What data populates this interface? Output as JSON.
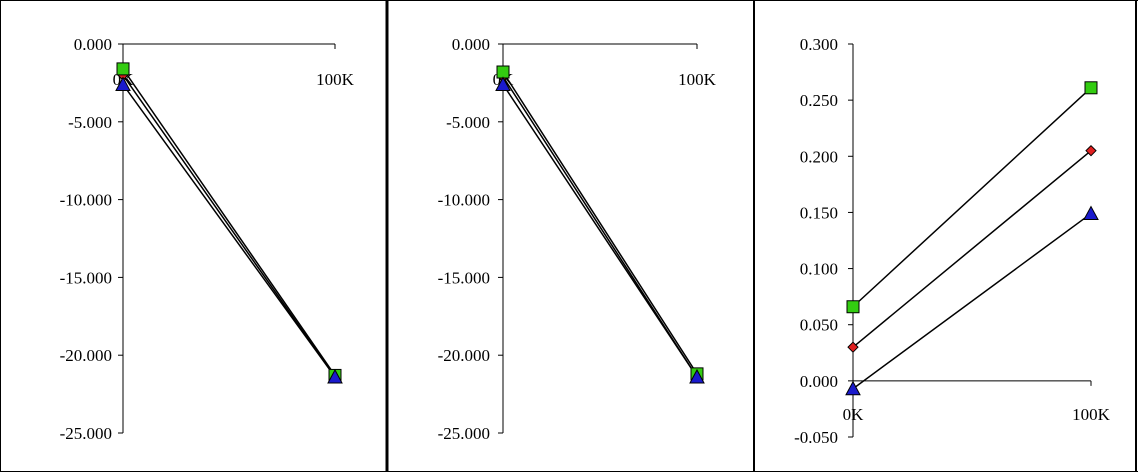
{
  "chart_data": [
    {
      "type": "line",
      "categories": [
        "0K",
        "100K"
      ],
      "ylim": [
        -25,
        0
      ],
      "yticks": [
        "0.000",
        "-5.000",
        "-10.000",
        "-15.000",
        "-20.000",
        "-25.000"
      ],
      "grid": false,
      "series": [
        {
          "marker": "diamond",
          "color": "#e02020",
          "values": [
            -2.0,
            -21.4
          ]
        },
        {
          "marker": "square",
          "color": "#33cc11",
          "values": [
            -1.6,
            -21.3
          ]
        },
        {
          "marker": "triangle",
          "color": "#1a1acc",
          "values": [
            -2.6,
            -21.4
          ]
        }
      ]
    },
    {
      "type": "line",
      "categories": [
        "0K",
        "100K"
      ],
      "ylim": [
        -25,
        0
      ],
      "yticks": [
        "0.000",
        "-5.000",
        "-10.000",
        "-15.000",
        "-20.000",
        "-25.000"
      ],
      "grid": false,
      "series": [
        {
          "marker": "diamond",
          "color": "#e02020",
          "values": [
            -2.1,
            -21.4
          ]
        },
        {
          "marker": "square",
          "color": "#33cc11",
          "values": [
            -1.8,
            -21.2
          ]
        },
        {
          "marker": "triangle",
          "color": "#1a1acc",
          "values": [
            -2.6,
            -21.4
          ]
        }
      ]
    },
    {
      "type": "line",
      "categories": [
        "0K",
        "100K"
      ],
      "ylim": [
        -0.05,
        0.3
      ],
      "yticks": [
        "0.300",
        "0.250",
        "0.200",
        "0.150",
        "0.100",
        "0.050",
        "0.000",
        "-0.050"
      ],
      "grid": false,
      "series": [
        {
          "marker": "square",
          "color": "#33cc11",
          "values": [
            0.066,
            0.261
          ]
        },
        {
          "marker": "diamond",
          "color": "#e02020",
          "values": [
            0.03,
            0.205
          ]
        },
        {
          "marker": "triangle",
          "color": "#1a1acc",
          "values": [
            -0.007,
            0.149
          ]
        }
      ]
    }
  ]
}
